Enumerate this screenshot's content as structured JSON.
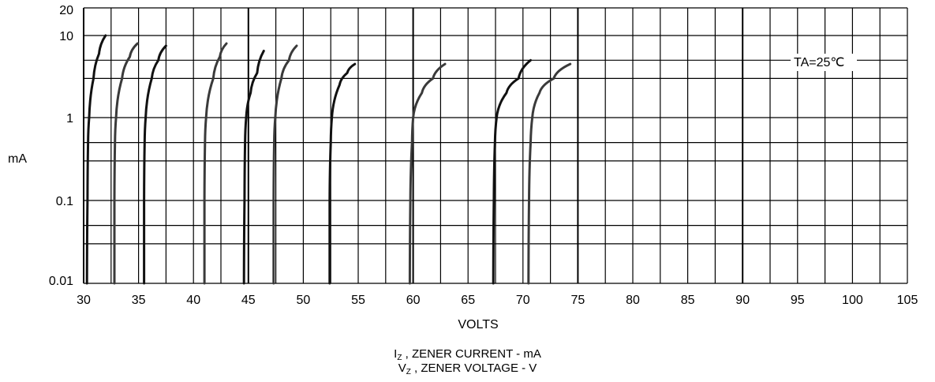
{
  "chart_data": {
    "type": "line",
    "ylabel": "mA",
    "xlabel": "VOLTS",
    "annotation": "TA=25℃",
    "xlim": [
      30,
      105
    ],
    "ylim": [
      0.01,
      20
    ],
    "y_scale": "log",
    "grid": true,
    "x_ticks": [
      "30",
      "35",
      "40",
      "45",
      "50",
      "55",
      "60",
      "65",
      "70",
      "75",
      "80",
      "85",
      "90",
      "95",
      "100",
      "105"
    ],
    "y_ticks": [
      {
        "value": 20,
        "label": "20"
      },
      {
        "value": 10,
        "label": "10"
      },
      {
        "value": 1,
        "label": "1"
      },
      {
        "value": 0.1,
        "label": "0.1"
      },
      {
        "value": 0.01,
        "label": "0.01"
      }
    ],
    "series": [
      {
        "points": [
          [
            30.3,
            0.01
          ],
          [
            30.35,
            0.1
          ],
          [
            30.4,
            0.5
          ],
          [
            30.5,
            1
          ],
          [
            30.9,
            3
          ],
          [
            31.4,
            6
          ],
          [
            32.0,
            10
          ]
        ]
      },
      {
        "points": [
          [
            32.8,
            0.01
          ],
          [
            32.8,
            0.1
          ],
          [
            32.85,
            0.5
          ],
          [
            32.95,
            1
          ],
          [
            33.5,
            3
          ],
          [
            34.2,
            5.5
          ],
          [
            34.9,
            8
          ]
        ]
      },
      {
        "points": [
          [
            35.5,
            0.01
          ],
          [
            35.5,
            0.1
          ],
          [
            35.55,
            0.5
          ],
          [
            35.65,
            1
          ],
          [
            36.2,
            3
          ],
          [
            36.8,
            5
          ],
          [
            37.5,
            7.5
          ]
        ]
      },
      {
        "points": [
          [
            41.0,
            0.01
          ],
          [
            41.0,
            0.1
          ],
          [
            41.05,
            0.5
          ],
          [
            41.15,
            1
          ],
          [
            41.8,
            3
          ],
          [
            42.4,
            5.5
          ],
          [
            43.0,
            8
          ]
        ]
      },
      {
        "points": [
          [
            44.6,
            0.01
          ],
          [
            44.65,
            0.1
          ],
          [
            44.7,
            0.5
          ],
          [
            44.8,
            1
          ],
          [
            45.2,
            2
          ],
          [
            45.8,
            3.5
          ],
          [
            46.4,
            6.5
          ]
        ]
      },
      {
        "points": [
          [
            47.3,
            0.01
          ],
          [
            47.3,
            0.1
          ],
          [
            47.35,
            0.5
          ],
          [
            47.45,
            1
          ],
          [
            48.0,
            3
          ],
          [
            48.7,
            5
          ],
          [
            49.4,
            7.5
          ]
        ]
      },
      {
        "points": [
          [
            52.4,
            0.01
          ],
          [
            52.4,
            0.1
          ],
          [
            52.5,
            0.5
          ],
          [
            52.6,
            1
          ],
          [
            53.3,
            2.5
          ],
          [
            54.0,
            3.5
          ],
          [
            54.7,
            4.5
          ]
        ]
      },
      {
        "points": [
          [
            59.7,
            0.01
          ],
          [
            59.75,
            0.1
          ],
          [
            59.9,
            0.5
          ],
          [
            60.0,
            1
          ],
          [
            60.8,
            2
          ],
          [
            61.8,
            3
          ],
          [
            62.9,
            4.5
          ]
        ]
      },
      {
        "points": [
          [
            67.3,
            0.01
          ],
          [
            67.35,
            0.1
          ],
          [
            67.45,
            0.5
          ],
          [
            67.6,
            1
          ],
          [
            68.5,
            2
          ],
          [
            69.6,
            3
          ],
          [
            70.7,
            5
          ]
        ]
      },
      {
        "points": [
          [
            70.5,
            0.01
          ],
          [
            70.55,
            0.1
          ],
          [
            70.7,
            0.5
          ],
          [
            70.85,
            1
          ],
          [
            71.5,
            2
          ],
          [
            72.8,
            3
          ],
          [
            74.3,
            4.5
          ]
        ]
      }
    ]
  },
  "caption": {
    "line1_sym": "I",
    "line1_sub": "Z",
    "line1_text": " , ZENER CURRENT - mA",
    "line2_sym": "V",
    "line2_sub": "Z",
    "line2_text": " , ZENER VOLTAGE  -  V"
  }
}
